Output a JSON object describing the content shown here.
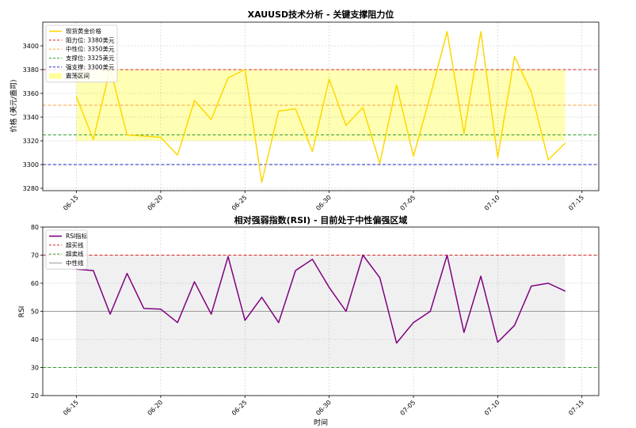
{
  "chart_data": [
    {
      "type": "line",
      "title": "XAUUSD技术分析 - 关键支撑阻力位",
      "xlabel": "",
      "ylabel": "价格 (美元/盎司)",
      "ylim": [
        3278,
        3420
      ],
      "yticks": [
        3280,
        3300,
        3320,
        3340,
        3360,
        3380,
        3400
      ],
      "xlim": [
        "2025-06-13",
        "2025-07-16"
      ],
      "xticks": [
        "06-15",
        "06-20",
        "06-25",
        "06-30",
        "07-05",
        "07-10",
        "07-15"
      ],
      "grid": true,
      "legend_position": "top-left",
      "x": [
        "06-15",
        "06-16",
        "06-17",
        "06-18",
        "06-19",
        "06-20",
        "06-21",
        "06-22",
        "06-23",
        "06-24",
        "06-25",
        "06-26",
        "06-27",
        "06-28",
        "06-29",
        "06-30",
        "07-01",
        "07-02",
        "07-03",
        "07-04",
        "07-05",
        "07-06",
        "07-07",
        "07-08",
        "07-09",
        "07-10",
        "07-11",
        "07-12",
        "07-13",
        "07-14"
      ],
      "series": [
        {
          "name": "现货黄金价格",
          "color": "#FFD700",
          "values": [
            3357,
            3321,
            3381,
            3325,
            3324,
            3323,
            3308,
            3354,
            3338,
            3373,
            3380,
            3285,
            3345,
            3347,
            3311,
            3372,
            3333,
            3348,
            3301,
            3367,
            3307,
            3358,
            3412,
            3326,
            3412,
            3306,
            3391,
            3361,
            3304,
            3318
          ]
        }
      ],
      "reference_lines": [
        {
          "name": "阻力位: 3380美元",
          "value": 3380,
          "color": "#d62728"
        },
        {
          "name": "中性位: 3350美元",
          "value": 3350,
          "color": "#ff9f40"
        },
        {
          "name": "支撑位: 3325美元",
          "value": 3325,
          "color": "#2ca02c"
        },
        {
          "name": "强支撑: 3300美元",
          "value": 3300,
          "color": "#2222cc"
        }
      ],
      "band": {
        "name": "震荡区间",
        "from": 3320,
        "to": 3380,
        "color": "#ffff99"
      }
    },
    {
      "type": "line",
      "title": "相对强弱指数(RSI) - 目前处于中性偏强区域",
      "xlabel": "时间",
      "ylabel": "RSI",
      "ylim": [
        20,
        80
      ],
      "yticks": [
        20,
        30,
        40,
        50,
        60,
        70,
        80
      ],
      "xlim": [
        "2025-06-13",
        "2025-07-16"
      ],
      "xticks": [
        "06-15",
        "06-20",
        "06-25",
        "06-30",
        "07-05",
        "07-10",
        "07-15"
      ],
      "grid": true,
      "legend_position": "top-left",
      "x": [
        "06-15",
        "06-16",
        "06-17",
        "06-18",
        "06-19",
        "06-20",
        "06-21",
        "06-22",
        "06-23",
        "06-24",
        "06-25",
        "06-26",
        "06-27",
        "06-28",
        "06-29",
        "06-30",
        "07-01",
        "07-02",
        "07-03",
        "07-04",
        "07-05",
        "07-06",
        "07-07",
        "07-08",
        "07-09",
        "07-10",
        "07-11",
        "07-12",
        "07-13",
        "07-14"
      ],
      "series": [
        {
          "name": "RSI指标",
          "color": "#800080",
          "values": [
            65,
            64.5,
            49,
            63.5,
            51,
            50.8,
            46,
            60.5,
            49,
            69.5,
            46.8,
            55,
            46,
            64.5,
            68.5,
            58.5,
            50,
            70,
            62,
            38.7,
            46,
            50,
            70,
            42.5,
            62.5,
            39,
            45,
            59,
            60,
            57.2
          ]
        }
      ],
      "reference_lines": [
        {
          "name": "超买线",
          "value": 70,
          "color": "#d62728"
        },
        {
          "name": "超卖线",
          "value": 30,
          "color": "#2ca02c"
        },
        {
          "name": "中性线",
          "value": 50,
          "color": "#999999"
        }
      ],
      "band": {
        "from": 30,
        "to": 70,
        "color": "#cccccc"
      }
    }
  ]
}
